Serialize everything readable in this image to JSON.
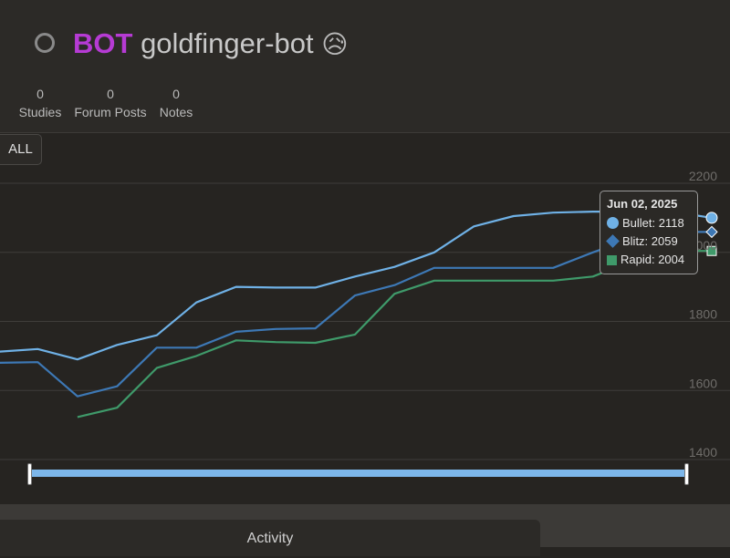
{
  "profile": {
    "status": "offline",
    "badge": "BOT",
    "username": "goldfinger-bot",
    "emoji": "😥",
    "badge_color": "#b63bd4"
  },
  "stats": [
    {
      "count": "0",
      "label": "Studies"
    },
    {
      "count": "0",
      "label": "Forum Posts"
    },
    {
      "count": "0",
      "label": "Notes"
    }
  ],
  "range_button": "ALL",
  "chart_data": {
    "type": "line",
    "title": "",
    "xlabel": "",
    "ylabel": "",
    "ylim": [
      1400,
      2200
    ],
    "yticks": [
      1400,
      1600,
      1800,
      2000,
      2200
    ],
    "grid": true,
    "series": [
      {
        "name": "Bullet",
        "color": "#6fb1e6",
        "values": [
          1712,
          1720,
          1690,
          1732,
          1760,
          1855,
          1900,
          1898,
          1898,
          1930,
          1958,
          2000,
          2075,
          2105,
          2115,
          2118,
          2118,
          2118,
          2100
        ]
      },
      {
        "name": "Blitz",
        "color": "#3d78b5",
        "values": [
          1680,
          1682,
          1583,
          1612,
          1724,
          1724,
          1770,
          1778,
          1780,
          1875,
          1905,
          1955,
          1955,
          1955,
          1955,
          2000,
          2040,
          2059,
          2059
        ]
      },
      {
        "name": "Rapid",
        "color": "#3f9a6a",
        "values": [
          null,
          null,
          1523,
          1550,
          1665,
          1700,
          1745,
          1740,
          1738,
          1762,
          1880,
          1918,
          1918,
          1918,
          1918,
          1930,
          1975,
          2004,
          2004
        ]
      }
    ],
    "tooltip": {
      "date": "Jun 02, 2025",
      "entries": [
        {
          "series": "Bullet",
          "value": 2118
        },
        {
          "series": "Blitz",
          "value": 2059
        },
        {
          "series": "Rapid",
          "value": 2004
        }
      ]
    }
  },
  "tooltip_text": {
    "date": "Jun 02, 2025",
    "bullet": "Bullet: 2118",
    "blitz": "Blitz: 2059",
    "rapid": "Rapid: 2004"
  },
  "activity_tab": "Activity"
}
